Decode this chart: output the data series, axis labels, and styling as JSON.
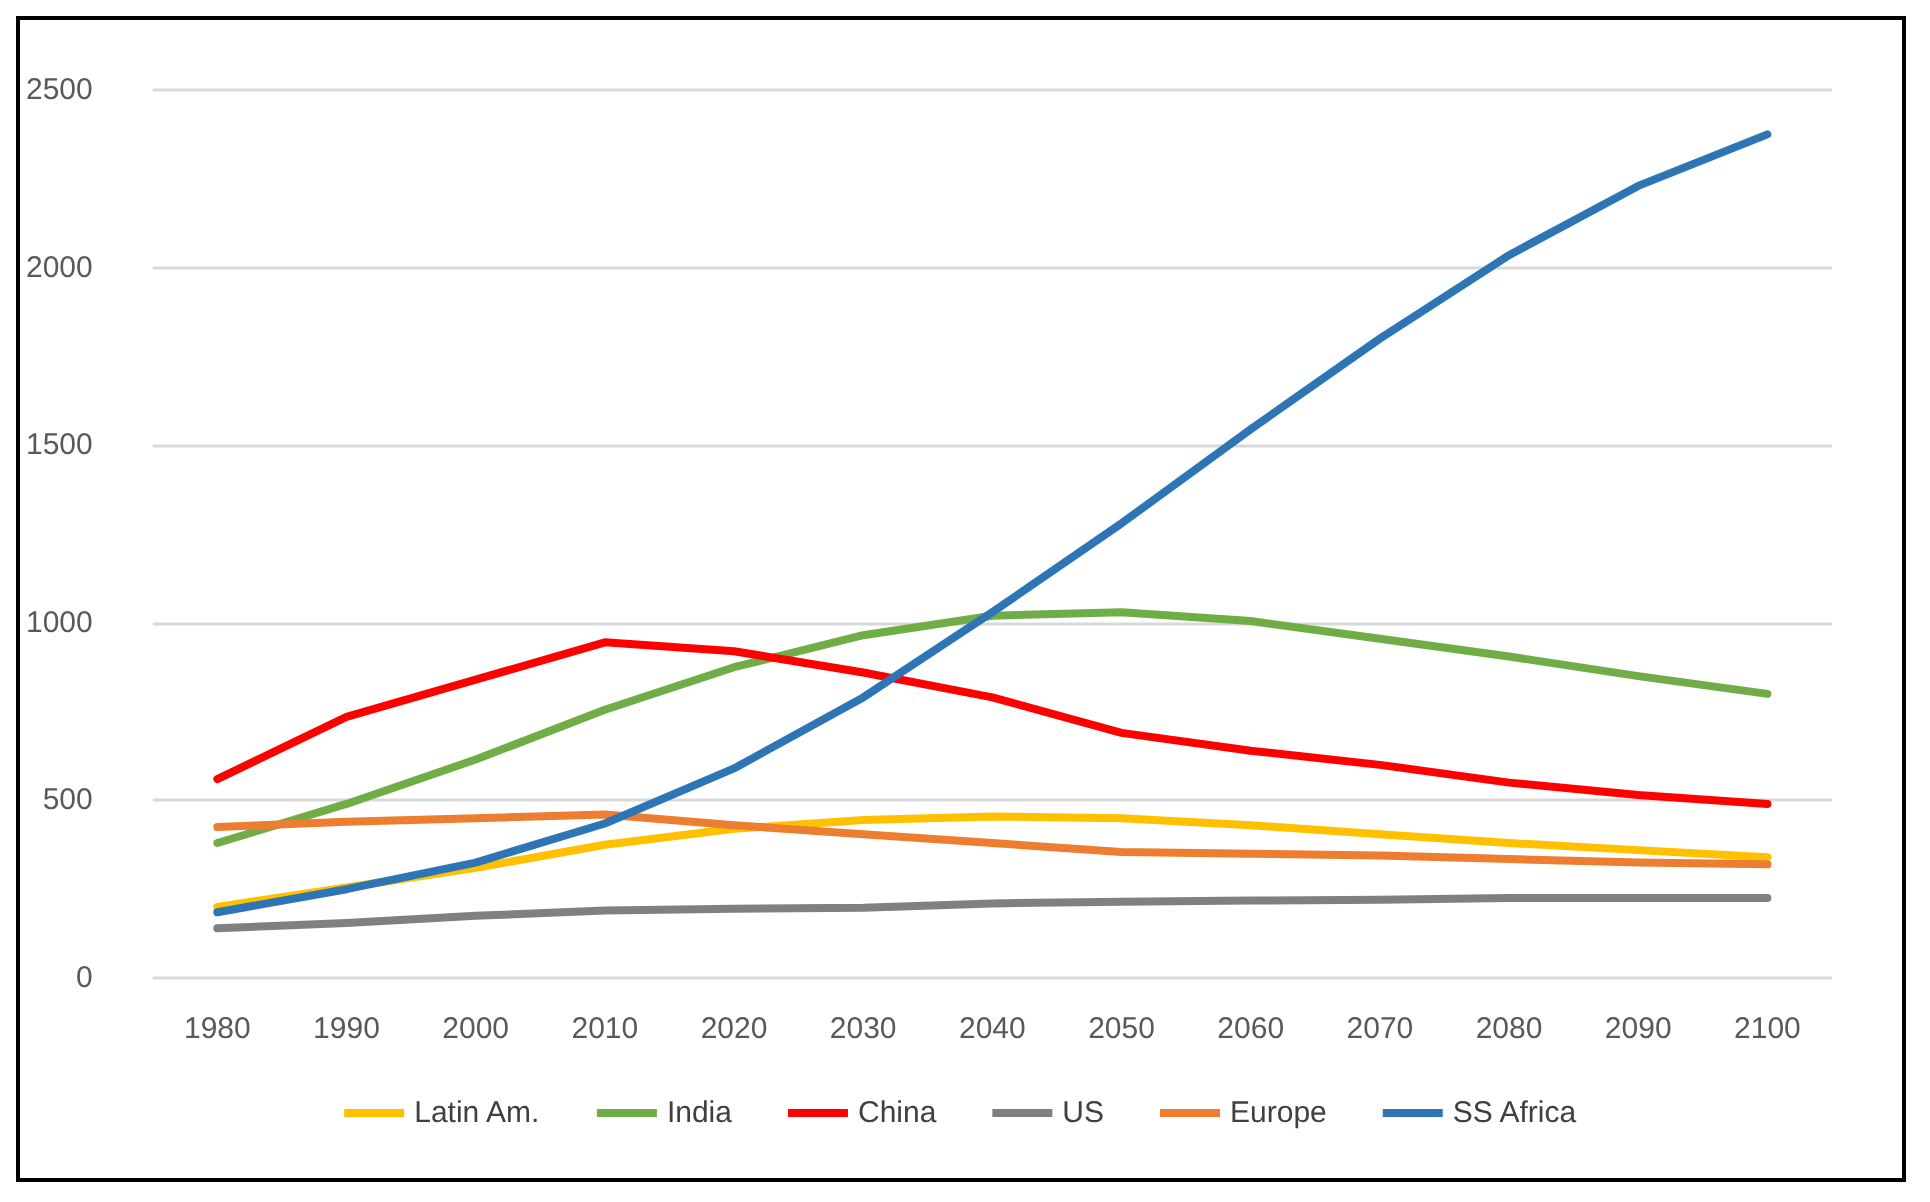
{
  "chart_data": {
    "type": "line",
    "categories": [
      "1980",
      "1990",
      "2000",
      "2010",
      "2020",
      "2030",
      "2040",
      "2050",
      "2060",
      "2070",
      "2080",
      "2090",
      "2100"
    ],
    "series": [
      {
        "name": "Latin Am.",
        "color": "#ffc000",
        "values": [
          200,
          255,
          310,
          375,
          420,
          445,
          455,
          450,
          430,
          405,
          380,
          360,
          340
        ]
      },
      {
        "name": "India",
        "color": "#70ad47",
        "values": [
          380,
          490,
          615,
          755,
          875,
          965,
          1020,
          1030,
          1005,
          955,
          905,
          850,
          800
        ]
      },
      {
        "name": "China",
        "color": "#ff0000",
        "values": [
          560,
          735,
          840,
          945,
          920,
          860,
          790,
          690,
          640,
          600,
          550,
          515,
          490
        ]
      },
      {
        "name": "US",
        "color": "#808080",
        "values": [
          140,
          155,
          175,
          190,
          195,
          198,
          210,
          215,
          218,
          220,
          225,
          225,
          225
        ]
      },
      {
        "name": "Europe",
        "color": "#ed7d31",
        "values": [
          425,
          440,
          450,
          460,
          430,
          405,
          380,
          355,
          350,
          345,
          335,
          325,
          320
        ]
      },
      {
        "name": "SS Africa",
        "color": "#2e75b6",
        "values": [
          185,
          250,
          325,
          435,
          590,
          790,
          1030,
          1280,
          1545,
          1800,
          2035,
          2230,
          2375
        ]
      }
    ],
    "ylim": [
      0,
      2500
    ],
    "yticks": [
      0,
      500,
      1000,
      1500,
      2000,
      2500
    ],
    "grid": "y",
    "legend": "bottom",
    "marker": "none",
    "line_style": "solid"
  }
}
